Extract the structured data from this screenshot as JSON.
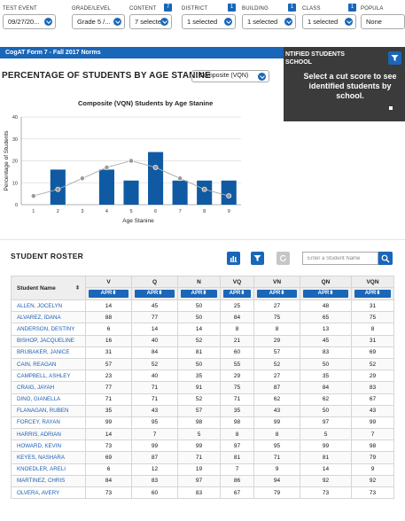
{
  "filters": [
    {
      "label": "TEST EVENT",
      "value": "09/27/20...",
      "badge": ""
    },
    {
      "label": "GRADE/LEVEL",
      "value": "Grade 5 /...",
      "badge": ""
    },
    {
      "label": "CONTENT",
      "value": "7 selected",
      "badge": "7"
    },
    {
      "label": "DISTRICT",
      "value": "1 selected",
      "badge": "1"
    },
    {
      "label": "BUILDING",
      "value": "1 selected",
      "badge": "1"
    },
    {
      "label": "CLASS",
      "value": "1 selected",
      "badge": "1"
    },
    {
      "label": "POPULA",
      "value": "None",
      "badge": ""
    }
  ],
  "norms_label": "CogAT Form 7 - Fall 2017 Norms",
  "side_panel": {
    "title_line1": "NTIFIED STUDENTS",
    "title_line2": "SCHOOL",
    "message": "Select a cut score to see identified students by school."
  },
  "chart_header": {
    "title": "PERCENTAGE OF STUDENTS BY AGE STANINE",
    "select_value": "Composite (VQN)"
  },
  "chart_data": {
    "type": "bar",
    "title": "Composite (VQN) Students by Age Stanine",
    "xlabel": "Age Stanine",
    "ylabel": "Percentage of Students",
    "categories": [
      "1",
      "2",
      "3",
      "4",
      "5",
      "6",
      "7",
      "8",
      "9"
    ],
    "ylim": [
      0,
      40
    ],
    "yticks": [
      0,
      10,
      20,
      30,
      40
    ],
    "grid": true,
    "bar_color": "#0f5aa3",
    "series": [
      {
        "values": [
          0,
          16,
          0,
          16,
          11,
          24,
          11,
          11,
          11
        ]
      },
      {
        "type": "line",
        "values": [
          4,
          7,
          12,
          17,
          20,
          17,
          12,
          7,
          4
        ]
      }
    ]
  },
  "roster": {
    "title": "STUDENT ROSTER",
    "search_placeholder": "Enter a Student Name",
    "name_header": "Student Name",
    "sort_glyph": "⬍",
    "columns": [
      "V",
      "Q",
      "N",
      "VQ",
      "VN",
      "QN",
      "VQN"
    ],
    "sub_label": "APR",
    "rows": [
      {
        "name": "ALLEN, JOCELYN",
        "v": [
          "14",
          "45",
          "50",
          "25",
          "27",
          "48",
          "31"
        ]
      },
      {
        "name": "ALVAREZ, IDANA",
        "v": [
          "88",
          "77",
          "50",
          "84",
          "75",
          "65",
          "75"
        ]
      },
      {
        "name": "ANDERSON, DESTINY",
        "v": [
          "6",
          "14",
          "14",
          "8",
          "8",
          "13",
          "8"
        ]
      },
      {
        "name": "BISHOP, JACQUELINE",
        "v": [
          "16",
          "40",
          "52",
          "21",
          "29",
          "45",
          "31"
        ]
      },
      {
        "name": "BRUBAKER, JANICE",
        "v": [
          "31",
          "84",
          "81",
          "60",
          "57",
          "83",
          "69"
        ]
      },
      {
        "name": "CAIN, REAGAN",
        "v": [
          "57",
          "52",
          "50",
          "55",
          "52",
          "50",
          "52"
        ]
      },
      {
        "name": "CAMPBELL, ASHLEY",
        "v": [
          "23",
          "40",
          "35",
          "29",
          "27",
          "35",
          "29"
        ]
      },
      {
        "name": "CRAIG, JAYAH",
        "v": [
          "77",
          "71",
          "91",
          "75",
          "87",
          "84",
          "83"
        ]
      },
      {
        "name": "DINO, GIANELLA",
        "v": [
          "71",
          "71",
          "52",
          "71",
          "62",
          "62",
          "67"
        ]
      },
      {
        "name": "FLANAGAN, RUBEN",
        "v": [
          "35",
          "43",
          "57",
          "35",
          "43",
          "50",
          "43"
        ]
      },
      {
        "name": "FORCEY, RAYAN",
        "v": [
          "99",
          "95",
          "98",
          "98",
          "99",
          "97",
          "99"
        ]
      },
      {
        "name": "HARRIS, ADRIAN",
        "v": [
          "14",
          "7",
          "5",
          "8",
          "8",
          "5",
          "7"
        ]
      },
      {
        "name": "HOWARD, KEVIN",
        "v": [
          "73",
          "99",
          "99",
          "97",
          "95",
          "99",
          "98"
        ]
      },
      {
        "name": "KEYES, NASHARA",
        "v": [
          "69",
          "87",
          "71",
          "81",
          "71",
          "81",
          "79"
        ]
      },
      {
        "name": "KNOEDLER, ARELI",
        "v": [
          "6",
          "12",
          "19",
          "7",
          "9",
          "14",
          "9"
        ]
      },
      {
        "name": "MARTINEZ, CHRIS",
        "v": [
          "84",
          "83",
          "97",
          "86",
          "94",
          "92",
          "92"
        ]
      },
      {
        "name": "OLVERA, AVERY",
        "v": [
          "73",
          "60",
          "83",
          "67",
          "79",
          "73",
          "73"
        ]
      }
    ]
  }
}
